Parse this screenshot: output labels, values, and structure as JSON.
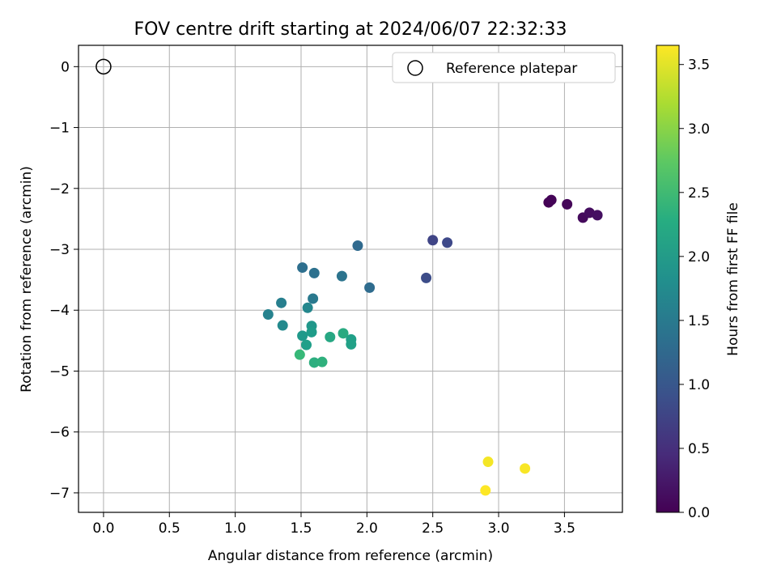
{
  "chart_data": {
    "type": "scatter",
    "title": "FOV centre drift starting at 2024/06/07 22:32:33",
    "xlabel": "Angular distance from reference (arcmin)",
    "ylabel": "Rotation from reference (arcmin)",
    "xlim": [
      -0.19,
      3.94
    ],
    "ylim": [
      -7.32,
      0.35
    ],
    "xticks": [
      0.0,
      0.5,
      1.0,
      1.5,
      2.0,
      2.5,
      3.0,
      3.5
    ],
    "xtick_labels": [
      "0.0",
      "0.5",
      "1.0",
      "1.5",
      "2.0",
      "2.5",
      "3.0",
      "3.5"
    ],
    "yticks": [
      0,
      -1,
      -2,
      -3,
      -4,
      -5,
      -6,
      -7
    ],
    "ytick_labels": [
      "0",
      "−1",
      "−2",
      "−3",
      "−4",
      "−5",
      "−6",
      "−7"
    ],
    "grid": true,
    "legend": {
      "placement": "top-right",
      "entries": [
        "Reference platepar"
      ]
    },
    "reference_point": {
      "x": 0.0,
      "y": 0.0,
      "marker": "open-circle"
    },
    "colormap": "viridis",
    "colorbar": {
      "label": "Hours from first FF file",
      "range": [
        0.0,
        3.65
      ],
      "ticks": [
        0.0,
        0.5,
        1.0,
        1.5,
        2.0,
        2.5,
        3.0,
        3.5
      ],
      "tick_labels": [
        "0.0",
        "0.5",
        "1.0",
        "1.5",
        "2.0",
        "2.5",
        "3.0",
        "3.5"
      ]
    },
    "points": [
      {
        "x": 3.38,
        "y": -2.23,
        "hours": 0.0
      },
      {
        "x": 3.4,
        "y": -2.19,
        "hours": 0.03
      },
      {
        "x": 3.52,
        "y": -2.26,
        "hours": 0.06
      },
      {
        "x": 3.64,
        "y": -2.48,
        "hours": 0.09
      },
      {
        "x": 3.69,
        "y": -2.4,
        "hours": 0.12
      },
      {
        "x": 3.75,
        "y": -2.44,
        "hours": 0.15
      },
      {
        "x": 2.5,
        "y": -2.85,
        "hours": 0.75
      },
      {
        "x": 2.61,
        "y": -2.89,
        "hours": 0.8
      },
      {
        "x": 2.45,
        "y": -3.47,
        "hours": 0.85
      },
      {
        "x": 1.93,
        "y": -2.94,
        "hours": 1.25
      },
      {
        "x": 2.02,
        "y": -3.63,
        "hours": 1.28
      },
      {
        "x": 1.51,
        "y": -3.3,
        "hours": 1.33
      },
      {
        "x": 1.6,
        "y": -3.39,
        "hours": 1.36
      },
      {
        "x": 1.81,
        "y": -3.44,
        "hours": 1.4
      },
      {
        "x": 1.59,
        "y": -3.81,
        "hours": 1.48
      },
      {
        "x": 1.35,
        "y": -3.88,
        "hours": 1.58
      },
      {
        "x": 1.25,
        "y": -4.07,
        "hours": 1.62
      },
      {
        "x": 1.55,
        "y": -3.96,
        "hours": 1.7
      },
      {
        "x": 1.36,
        "y": -4.25,
        "hours": 1.74
      },
      {
        "x": 1.58,
        "y": -4.26,
        "hours": 1.92
      },
      {
        "x": 1.51,
        "y": -4.42,
        "hours": 1.96
      },
      {
        "x": 1.58,
        "y": -4.36,
        "hours": 2.0
      },
      {
        "x": 1.54,
        "y": -4.57,
        "hours": 2.04
      },
      {
        "x": 1.88,
        "y": -4.48,
        "hours": 2.06
      },
      {
        "x": 1.88,
        "y": -4.56,
        "hours": 2.08
      },
      {
        "x": 1.72,
        "y": -4.44,
        "hours": 2.18
      },
      {
        "x": 1.82,
        "y": -4.38,
        "hours": 2.22
      },
      {
        "x": 1.6,
        "y": -4.86,
        "hours": 2.28
      },
      {
        "x": 1.66,
        "y": -4.85,
        "hours": 2.32
      },
      {
        "x": 1.49,
        "y": -4.73,
        "hours": 2.45
      },
      {
        "x": 2.92,
        "y": -6.49,
        "hours": 3.6
      },
      {
        "x": 3.2,
        "y": -6.6,
        "hours": 3.62
      },
      {
        "x": 2.9,
        "y": -6.96,
        "hours": 3.65
      }
    ]
  }
}
